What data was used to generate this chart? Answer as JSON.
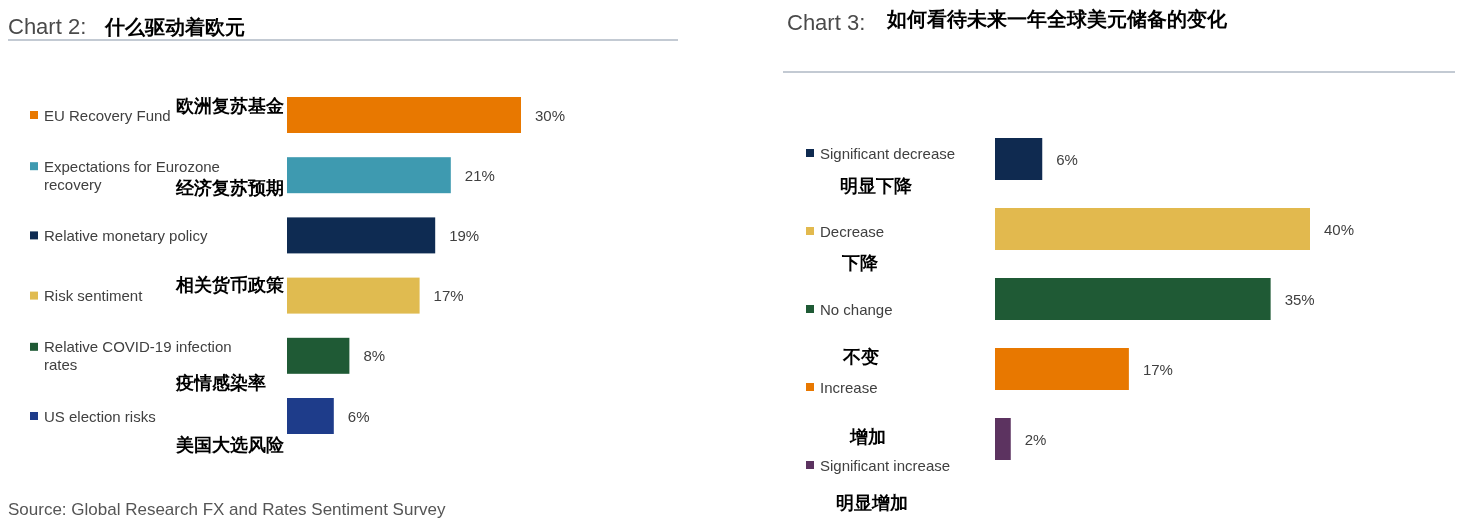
{
  "chart_data": [
    {
      "type": "bar",
      "orientation": "horizontal",
      "title": "Chart 2:",
      "subtitle": "什么驱动着欧元",
      "categories": [
        "EU Recovery Fund",
        "Expectations for Eurozone recovery",
        "Relative monetary policy",
        "Risk sentiment",
        "Relative COVID-19 infection rates",
        "US election risks"
      ],
      "values": [
        30,
        21,
        19,
        17,
        8,
        6
      ],
      "colors": [
        "#e87800",
        "#3e9ab0",
        "#0e2b52",
        "#e0bb50",
        "#1f5a35",
        "#1e3c8a"
      ],
      "value_labels": [
        "30%",
        "21%",
        "19%",
        "17%",
        "8%",
        "6%"
      ],
      "tick_labels": "y",
      "annotations": [
        "欧洲复苏基金",
        "经济复苏预期",
        "相关货币政策",
        "疫情感染率",
        "美国大选风险",
        "Source: Global Research FX and Rates Sentiment Survey"
      ]
    },
    {
      "type": "bar",
      "orientation": "horizontal",
      "title": "Chart 3:",
      "subtitle": "如何看待未来一年全球美元储备的变化",
      "categories": [
        "Significant decrease",
        "Decrease",
        "No change",
        "Increase",
        "Significant increase"
      ],
      "values": [
        6,
        40,
        35,
        17,
        2
      ],
      "colors": [
        "#0f2a50",
        "#e2b94e",
        "#1f5a35",
        "#e87800",
        "#5c3360"
      ],
      "value_labels": [
        "6%",
        "40%",
        "35%",
        "17%",
        "2%"
      ],
      "tick_labels": "y",
      "annotations": [
        "明显下降",
        "下降",
        "不变",
        "增加",
        "明显增加"
      ]
    }
  ]
}
